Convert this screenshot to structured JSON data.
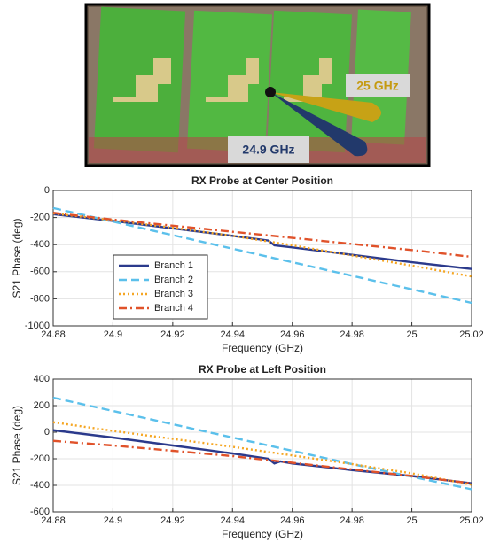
{
  "image_annotations": [
    "25 GHz",
    "24.9 GHz"
  ],
  "chart_data": [
    {
      "type": "line",
      "title": "RX Probe at Center Position",
      "xlabel": "Frequency (GHz)",
      "ylabel": "S21 Phase (deg)",
      "xlim": [
        24.88,
        25.02
      ],
      "xticks": [
        24.88,
        24.9,
        24.92,
        24.94,
        24.96,
        24.98,
        25,
        25.02
      ],
      "ylim": [
        -1000,
        0
      ],
      "yticks": [
        -1000,
        -800,
        -600,
        -400,
        -200,
        0
      ],
      "grid": true,
      "legend": "lower left",
      "series": [
        {
          "name": "Branch 1",
          "color": "#2b3a8c",
          "dash": "solid",
          "x": [
            24.88,
            24.9,
            24.92,
            24.94,
            24.952,
            24.954,
            24.96,
            24.98,
            25,
            25.02
          ],
          "values": [
            -175,
            -225,
            -280,
            -335,
            -370,
            -405,
            -420,
            -475,
            -530,
            -580
          ]
        },
        {
          "name": "Branch 2",
          "color": "#5bc0eb",
          "dash": "dashed",
          "x": [
            24.88,
            24.9,
            24.92,
            24.94,
            24.96,
            24.98,
            25,
            25.02
          ],
          "values": [
            -130,
            -230,
            -330,
            -430,
            -530,
            -630,
            -730,
            -830
          ]
        },
        {
          "name": "Branch 3",
          "color": "#f5a623",
          "dash": "dotted",
          "x": [
            24.88,
            24.9,
            24.92,
            24.94,
            24.96,
            24.98,
            25,
            25.02
          ],
          "values": [
            -170,
            -220,
            -275,
            -335,
            -405,
            -480,
            -555,
            -635
          ]
        },
        {
          "name": "Branch 4",
          "color": "#e0522a",
          "dash": "dashdot",
          "x": [
            24.88,
            24.9,
            24.92,
            24.94,
            24.96,
            24.98,
            25,
            25.02
          ],
          "values": [
            -165,
            -215,
            -260,
            -305,
            -350,
            -395,
            -440,
            -490
          ]
        }
      ]
    },
    {
      "type": "line",
      "title": "RX Probe at Left Position",
      "xlabel": "Frequency (GHz)",
      "ylabel": "S21 Phase (deg)",
      "xlim": [
        24.88,
        25.02
      ],
      "xticks": [
        24.88,
        24.9,
        24.92,
        24.94,
        24.96,
        24.98,
        25,
        25.02
      ],
      "ylim": [
        -600,
        400
      ],
      "yticks": [
        -600,
        -400,
        -200,
        0,
        200,
        400
      ],
      "grid": true,
      "series": [
        {
          "color": "#2b3a8c",
          "dash": "solid",
          "x": [
            24.88,
            24.9,
            24.92,
            24.94,
            24.952,
            24.954,
            24.956,
            24.96,
            24.98,
            25,
            25.02
          ],
          "values": [
            15,
            -40,
            -100,
            -160,
            -200,
            -235,
            -220,
            -235,
            -285,
            -330,
            -385
          ]
        },
        {
          "color": "#5bc0eb",
          "dash": "dashed",
          "x": [
            24.88,
            24.9,
            24.92,
            24.94,
            24.96,
            24.98,
            25,
            25.02
          ],
          "values": [
            260,
            160,
            60,
            -40,
            -140,
            -240,
            -335,
            -430
          ]
        },
        {
          "color": "#f5a623",
          "dash": "dotted",
          "x": [
            24.88,
            24.9,
            24.92,
            24.94,
            24.96,
            24.98,
            25,
            25.02
          ],
          "values": [
            75,
            10,
            -50,
            -110,
            -175,
            -240,
            -310,
            -395
          ]
        },
        {
          "color": "#e0522a",
          "dash": "dashdot",
          "x": [
            24.88,
            24.9,
            24.92,
            24.94,
            24.96,
            24.98,
            25,
            25.02
          ],
          "values": [
            -65,
            -100,
            -140,
            -180,
            -230,
            -280,
            -330,
            -385
          ]
        }
      ]
    }
  ]
}
